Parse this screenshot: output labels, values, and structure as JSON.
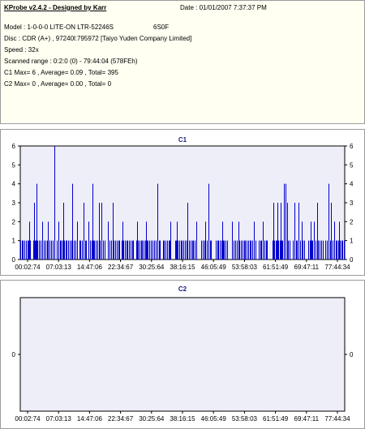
{
  "info": {
    "title": "KProbe v2.4.2 - Designed by Karr",
    "date": "Date : 01/01/2007 7:37:37 PM",
    "model": "Model : 1-0-0-0 LITE-ON LTR-52246S",
    "firmware": "6S0F",
    "disc": "Disc : CDR (A+) , 97240l:795972 [Taiyo Yuden Company Limited]",
    "speed": "Speed : 32x",
    "scanned_range": "Scanned range : 0:2:0 (0) - 79:44:04 (578FEh)",
    "c1_stats": "C1 Max= 6 , Average= 0.09 , Total= 395",
    "c2_stats": "C2 Max= 0 , Average= 0.00 , Total= 0"
  },
  "colors": {
    "plot_bg": "#eeeef8",
    "bar": "#0000cc",
    "panel_bg": "#fffff2"
  },
  "chart_data": [
    {
      "type": "bar",
      "title": "C1",
      "ylim": [
        0,
        6
      ],
      "yticks": [
        "0",
        "1",
        "2",
        "3",
        "4",
        "5",
        "6"
      ],
      "xticks": [
        "00:02:74",
        "07:03:13",
        "14:47:06",
        "22:34:67",
        "30:25:64",
        "38:16:15",
        "46:05:49",
        "53:58:03",
        "61:51:49",
        "69:47:11",
        "77:44:34"
      ],
      "x_range_minutes": [
        0.03,
        79.73
      ],
      "spikes": [
        {
          "x": 2.2,
          "y": 2
        },
        {
          "x": 3.5,
          "y": 3
        },
        {
          "x": 4.1,
          "y": 4
        },
        {
          "x": 5.5,
          "y": 2
        },
        {
          "x": 6.8,
          "y": 2
        },
        {
          "x": 8.3,
          "y": 6
        },
        {
          "x": 9.3,
          "y": 2
        },
        {
          "x": 10.6,
          "y": 3
        },
        {
          "x": 12.8,
          "y": 4
        },
        {
          "x": 14.0,
          "y": 2
        },
        {
          "x": 15.5,
          "y": 3
        },
        {
          "x": 16.8,
          "y": 2
        },
        {
          "x": 17.7,
          "y": 4
        },
        {
          "x": 19.3,
          "y": 3
        },
        {
          "x": 20.0,
          "y": 3
        },
        {
          "x": 21.5,
          "y": 2
        },
        {
          "x": 22.8,
          "y": 3
        },
        {
          "x": 25.2,
          "y": 2
        },
        {
          "x": 28.7,
          "y": 2
        },
        {
          "x": 31.0,
          "y": 2
        },
        {
          "x": 33.8,
          "y": 4
        },
        {
          "x": 36.9,
          "y": 2
        },
        {
          "x": 38.5,
          "y": 2
        },
        {
          "x": 41.0,
          "y": 3
        },
        {
          "x": 43.2,
          "y": 2
        },
        {
          "x": 45.4,
          "y": 2
        },
        {
          "x": 46.3,
          "y": 4
        },
        {
          "x": 49.6,
          "y": 2
        },
        {
          "x": 52.1,
          "y": 2
        },
        {
          "x": 53.7,
          "y": 2
        },
        {
          "x": 57.5,
          "y": 2
        },
        {
          "x": 59.6,
          "y": 2
        },
        {
          "x": 62.2,
          "y": 3
        },
        {
          "x": 63.1,
          "y": 3
        },
        {
          "x": 63.9,
          "y": 3
        },
        {
          "x": 64.7,
          "y": 4
        },
        {
          "x": 65.1,
          "y": 4
        },
        {
          "x": 65.6,
          "y": 3
        },
        {
          "x": 67.4,
          "y": 3
        },
        {
          "x": 68.4,
          "y": 3
        },
        {
          "x": 69.2,
          "y": 2
        },
        {
          "x": 71.3,
          "y": 2
        },
        {
          "x": 72.2,
          "y": 2
        },
        {
          "x": 73.0,
          "y": 3
        },
        {
          "x": 75.7,
          "y": 4
        },
        {
          "x": 76.4,
          "y": 3
        },
        {
          "x": 77.1,
          "y": 2
        },
        {
          "x": 78.3,
          "y": 2
        }
      ],
      "baseline_value": 1,
      "baseline_segments": [
        [
          0.0,
          2.8
        ],
        [
          3.2,
          5.0
        ],
        [
          5.5,
          8.0
        ],
        [
          9.0,
          13.8
        ],
        [
          14.5,
          16.5
        ],
        [
          17.2,
          21.0
        ],
        [
          21.6,
          24.5
        ],
        [
          25.0,
          28.0
        ],
        [
          28.6,
          32.5
        ],
        [
          33.0,
          34.5
        ],
        [
          35.0,
          37.0
        ],
        [
          38.0,
          43.5
        ],
        [
          44.5,
          47.0
        ],
        [
          48.0,
          51.0
        ],
        [
          52.5,
          58.0
        ],
        [
          58.6,
          61.0
        ],
        [
          62.0,
          66.5
        ],
        [
          67.0,
          70.0
        ],
        [
          70.8,
          74.5
        ],
        [
          75.0,
          79.7
        ]
      ]
    },
    {
      "type": "bar",
      "title": "C2",
      "ylim": [
        -1,
        1
      ],
      "yticks": [
        "0"
      ],
      "xticks": [
        "00:02:74",
        "07:03:13",
        "14:47:06",
        "22:34:67",
        "30:25:64",
        "38:16:15",
        "46:05:49",
        "53:58:03",
        "61:51:49",
        "69:47:11",
        "77:44:34"
      ],
      "values": []
    }
  ]
}
